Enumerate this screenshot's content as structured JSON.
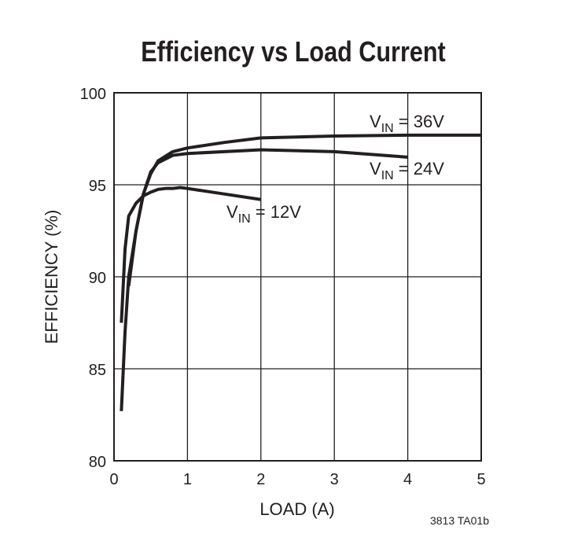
{
  "chart_data": {
    "type": "line",
    "title": "Efficiency vs Load Current",
    "x_label": "LOAD (A)",
    "y_label": "EFFICIENCY (%)",
    "footnote": "3813 TA01b",
    "xlim": [
      0,
      5
    ],
    "xticks": [
      0,
      1,
      2,
      3,
      4,
      5
    ],
    "ylim": [
      80,
      100
    ],
    "yticks": [
      80,
      85,
      90,
      95,
      100
    ],
    "grid": true,
    "series": [
      {
        "label_parts": [
          "V",
          "IN",
          " = 36V"
        ],
        "color": "#231f20",
        "x": [
          0.2,
          0.3,
          0.4,
          0.5,
          0.6,
          0.8,
          1.0,
          1.5,
          2.0,
          3.0,
          4.0,
          5.0
        ],
        "values": [
          89.5,
          92.5,
          94.5,
          95.6,
          96.3,
          96.8,
          97.0,
          97.3,
          97.55,
          97.65,
          97.7,
          97.7
        ]
      },
      {
        "label_parts": [
          "V",
          "IN",
          " = 24V"
        ],
        "color": "#231f20",
        "x": [
          0.1,
          0.15,
          0.2,
          0.3,
          0.4,
          0.5,
          0.6,
          0.8,
          1.0,
          2.0,
          3.0,
          4.0
        ],
        "values": [
          82.7,
          87.0,
          90.0,
          92.5,
          94.5,
          95.7,
          96.2,
          96.6,
          96.7,
          96.9,
          96.8,
          96.5
        ]
      },
      {
        "label_parts": [
          "V",
          "IN",
          " = 12V"
        ],
        "color": "#231f20",
        "x": [
          0.1,
          0.15,
          0.2,
          0.3,
          0.4,
          0.5,
          0.6,
          0.7,
          0.8,
          0.9,
          1.0,
          1.5,
          2.0
        ],
        "values": [
          87.5,
          91.5,
          93.3,
          94.0,
          94.4,
          94.6,
          94.75,
          94.8,
          94.8,
          94.85,
          94.8,
          94.5,
          94.2
        ]
      }
    ]
  }
}
